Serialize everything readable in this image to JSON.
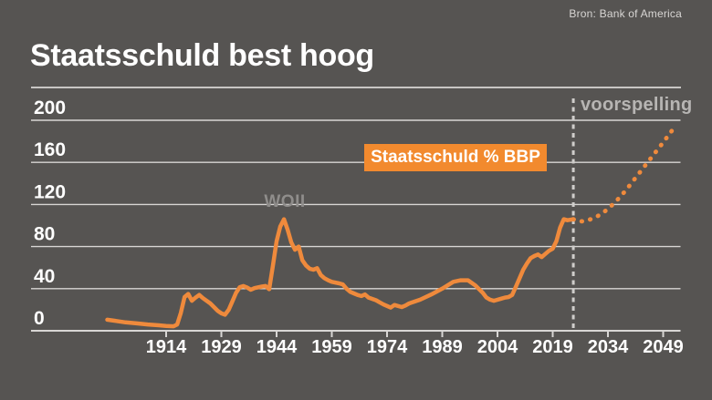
{
  "header": {
    "title": "Staatsschuld best hoog",
    "source": "Bron: Bank of America"
  },
  "chart_data": {
    "type": "line",
    "title": "Staatsschuld best hoog",
    "series_label": "Staatsschuld % BBP",
    "annotations": {
      "wwii": "WOII",
      "forecast": "voorspelling"
    },
    "x_ticks": [
      1914,
      1929,
      1944,
      1959,
      1974,
      1989,
      2004,
      2019,
      2034,
      2049
    ],
    "y_ticks": [
      0,
      40,
      80,
      120,
      160,
      200
    ],
    "xlim": [
      1898,
      2053
    ],
    "ylim": [
      0,
      200
    ],
    "grid": "horizontal",
    "forecast_divider_year": 2024.6,
    "historical": [
      [
        1898,
        10.5
      ],
      [
        1900,
        9.5
      ],
      [
        1903,
        8
      ],
      [
        1906,
        7
      ],
      [
        1909,
        6
      ],
      [
        1912,
        5.2
      ],
      [
        1914,
        4.6
      ],
      [
        1916,
        4.2
      ],
      [
        1917,
        6
      ],
      [
        1918,
        17
      ],
      [
        1919,
        32
      ],
      [
        1920,
        35
      ],
      [
        1921,
        28.5
      ],
      [
        1922,
        31.5
      ],
      [
        1923,
        34
      ],
      [
        1924,
        31
      ],
      [
        1926,
        26
      ],
      [
        1928,
        19
      ],
      [
        1929,
        16.5
      ],
      [
        1930,
        15.2
      ],
      [
        1931,
        20
      ],
      [
        1932,
        28
      ],
      [
        1933,
        36
      ],
      [
        1934,
        41.5
      ],
      [
        1935,
        42.5
      ],
      [
        1936,
        41
      ],
      [
        1937,
        39
      ],
      [
        1938,
        40.5
      ],
      [
        1940,
        42
      ],
      [
        1941,
        42.5
      ],
      [
        1942,
        39.5
      ],
      [
        1943,
        62
      ],
      [
        1944,
        85
      ],
      [
        1945,
        99
      ],
      [
        1946,
        106
      ],
      [
        1947,
        96
      ],
      [
        1948,
        84
      ],
      [
        1949,
        77
      ],
      [
        1950,
        80
      ],
      [
        1951,
        67
      ],
      [
        1952,
        62
      ],
      [
        1953,
        59
      ],
      [
        1954,
        58
      ],
      [
        1955,
        59.5
      ],
      [
        1956,
        53
      ],
      [
        1957,
        50
      ],
      [
        1958,
        48
      ],
      [
        1959,
        46.5
      ],
      [
        1961,
        45
      ],
      [
        1962,
        44
      ],
      [
        1963,
        40
      ],
      [
        1964,
        37
      ],
      [
        1965,
        35.5
      ],
      [
        1966,
        34
      ],
      [
        1967,
        33
      ],
      [
        1968,
        34.5
      ],
      [
        1969,
        31.5
      ],
      [
        1971,
        29
      ],
      [
        1972,
        27
      ],
      [
        1973,
        25
      ],
      [
        1975,
        22
      ],
      [
        1976,
        24.5
      ],
      [
        1978,
        22.5
      ],
      [
        1979,
        24
      ],
      [
        1980,
        26
      ],
      [
        1983,
        29.5
      ],
      [
        1986,
        34.5
      ],
      [
        1989,
        40
      ],
      [
        1992,
        46.5
      ],
      [
        1994,
        48
      ],
      [
        1996,
        48
      ],
      [
        1998,
        43
      ],
      [
        2000,
        36
      ],
      [
        2001,
        31.5
      ],
      [
        2002,
        29.5
      ],
      [
        2003,
        28.5
      ],
      [
        2005,
        30.5
      ],
      [
        2006,
        31.5
      ],
      [
        2007,
        32
      ],
      [
        2008,
        34
      ],
      [
        2009,
        42
      ],
      [
        2010,
        50
      ],
      [
        2011,
        58
      ],
      [
        2012,
        64
      ],
      [
        2013,
        69
      ],
      [
        2014,
        71
      ],
      [
        2015,
        72.5
      ],
      [
        2016,
        70
      ],
      [
        2017,
        73
      ],
      [
        2018,
        76
      ],
      [
        2019,
        78
      ],
      [
        2020,
        85
      ],
      [
        2021,
        98
      ],
      [
        2022,
        106
      ],
      [
        2023,
        105
      ],
      [
        2024.6,
        106
      ]
    ],
    "forecast": [
      [
        2024.6,
        106
      ],
      [
        2026,
        104
      ],
      [
        2027.5,
        104
      ],
      [
        2029,
        105.5
      ],
      [
        2031,
        108.5
      ],
      [
        2033,
        113
      ],
      [
        2035,
        119
      ],
      [
        2037,
        126
      ],
      [
        2039,
        134
      ],
      [
        2041,
        143
      ],
      [
        2043,
        152
      ],
      [
        2045,
        161
      ],
      [
        2047,
        170
      ],
      [
        2049,
        179
      ],
      [
        2050.5,
        186
      ],
      [
        2052,
        193
      ]
    ],
    "colors": {
      "background": "#565452",
      "line": "#EF8A3C",
      "label_bg": "#F28A2E",
      "grid": "#D8D6D4",
      "dashed": "#CFCDCB",
      "text": "#FFFFFF",
      "wwii_text": "#8F8D8B",
      "forecast_text": "#B7B5B3"
    }
  }
}
